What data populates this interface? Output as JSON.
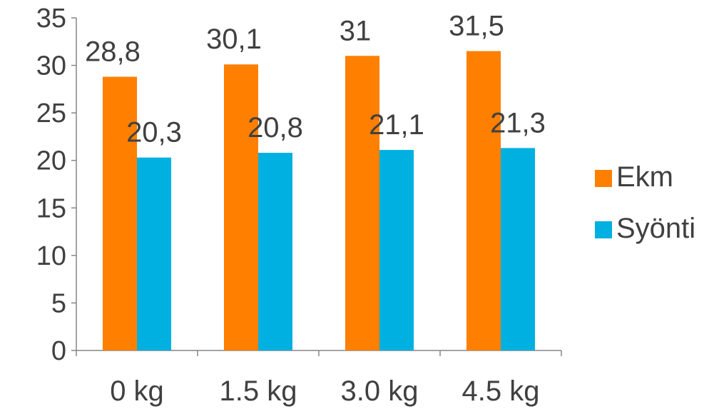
{
  "chart_data": {
    "type": "bar",
    "categories": [
      "0 kg",
      "1.5 kg",
      "3.0 kg",
      "4.5 kg"
    ],
    "series": [
      {
        "name": "Ekm",
        "values": [
          28.8,
          30.1,
          31,
          31.5
        ],
        "labels": [
          "28,8",
          "30,1",
          "31",
          "31,5"
        ],
        "color": "#FF7F00"
      },
      {
        "name": "Syönti",
        "values": [
          20.3,
          20.8,
          21.1,
          21.3
        ],
        "labels": [
          "20,3",
          "20,8",
          "21,1",
          "21,3"
        ],
        "color": "#00B0E0"
      }
    ],
    "ylim": [
      0,
      35
    ],
    "yticks": [
      0,
      5,
      10,
      15,
      20,
      25,
      30,
      35
    ],
    "title": "",
    "xlabel": "",
    "ylabel": "",
    "grid": false,
    "legend_position": "right"
  }
}
